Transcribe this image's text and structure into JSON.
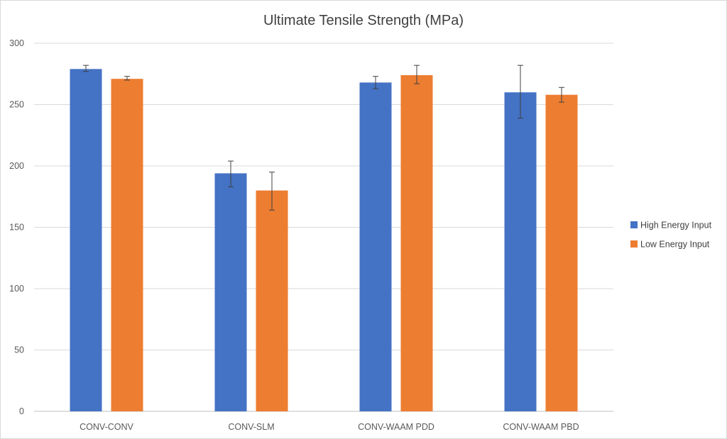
{
  "chart_data": {
    "type": "bar",
    "title": "Ultimate Tensile Strength (MPa)",
    "xlabel": "",
    "ylabel": "",
    "ylim": [
      0,
      300
    ],
    "yticks": [
      0,
      50,
      100,
      150,
      200,
      250,
      300
    ],
    "ytick_labels": [
      "0",
      "50",
      "100",
      "150",
      "200",
      "250",
      "300"
    ],
    "grid": true,
    "legend_position": "right",
    "categories": [
      "CONV-CONV",
      "CONV-SLM",
      "CONV-WAAM PDD",
      "CONV-WAAM PBD"
    ],
    "series": [
      {
        "name": "High Energy Input",
        "color": "#4472c4",
        "values": [
          279,
          194,
          268,
          260
        ],
        "error_low": [
          277,
          183,
          263,
          239
        ],
        "error_high": [
          282,
          204,
          273,
          282
        ]
      },
      {
        "name": "Low Energy Input",
        "color": "#ed7d31",
        "values": [
          271,
          180,
          274,
          258
        ],
        "error_low": [
          270,
          164,
          267,
          252
        ],
        "error_high": [
          273,
          195,
          282,
          264
        ]
      }
    ]
  }
}
